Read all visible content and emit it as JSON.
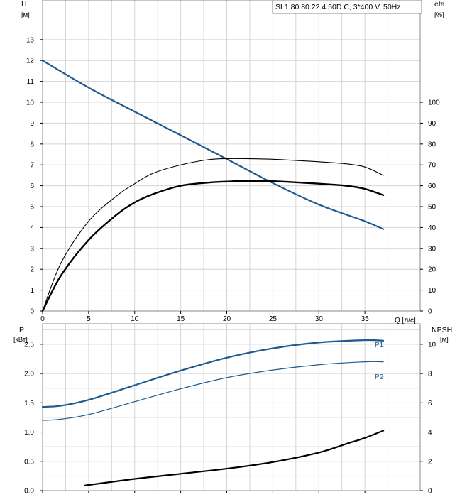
{
  "colors": {
    "blue": "#1f5a8f",
    "black": "#000000",
    "grid": "#d4d4d4"
  },
  "chart_data": [
    {
      "type": "line",
      "panel": "top",
      "title": "SL1.80.80.22.4.50D.C, 3*400 V, 50Hz",
      "xlabel": "Q [л/с]",
      "ylabel": "H",
      "yunit": "[м]",
      "y2label": "eta",
      "y2unit": "[%]",
      "xlim": [
        0,
        41
      ],
      "ylim": [
        0,
        14.9
      ],
      "y2lim": [
        0,
        149
      ],
      "xticks": [
        0,
        5,
        10,
        15,
        20,
        25,
        30,
        35
      ],
      "yticks": [
        0,
        1,
        2,
        3,
        4,
        5,
        6,
        7,
        8,
        9,
        10,
        11,
        12,
        13
      ],
      "y2ticks": [
        0,
        10,
        20,
        30,
        40,
        50,
        60,
        70,
        80,
        90,
        100
      ],
      "grid": true,
      "series": [
        {
          "axis": "left",
          "color": "#1f5a8f",
          "width": 2.2,
          "x": [
            0,
            5,
            10,
            15,
            20,
            25,
            30,
            35,
            37
          ],
          "y": [
            12.0,
            10.7,
            9.55,
            8.42,
            7.28,
            6.13,
            5.1,
            4.3,
            3.92
          ]
        },
        {
          "axis": "right",
          "color": "#000000",
          "width": 1.1,
          "x": [
            0,
            2,
            5,
            8,
            10,
            12,
            15,
            18,
            20,
            22,
            25,
            28,
            30,
            33,
            35,
            37
          ],
          "y": [
            0,
            23,
            43,
            55,
            61,
            66,
            70,
            72.5,
            73,
            73,
            72.7,
            72,
            71.5,
            70.5,
            69,
            65
          ]
        },
        {
          "axis": "right",
          "color": "#000000",
          "width": 2.4,
          "x": [
            0,
            2,
            5,
            8,
            10,
            12,
            15,
            18,
            20,
            22,
            25,
            28,
            30,
            33,
            35,
            37
          ],
          "y": [
            0,
            17,
            34,
            46,
            52,
            56,
            60,
            61.5,
            62,
            62.3,
            62.2,
            61.5,
            61,
            60,
            58.5,
            55.5
          ]
        }
      ]
    },
    {
      "type": "line",
      "panel": "bottom",
      "xlim": [
        0,
        41
      ],
      "ylim": [
        0,
        2.85
      ],
      "y2lim": [
        0,
        11.4
      ],
      "ylabel": "P",
      "yunit": "[кВт]",
      "y2label": "NPSH",
      "y2unit": "[м]",
      "yticks": [
        0.0,
        0.5,
        1.0,
        1.5,
        2.0,
        2.5
      ],
      "ytick_labels": [
        "0.0",
        "0.5",
        "1.0",
        "1.5",
        "2.0",
        "2.5"
      ],
      "y2ticks": [
        0,
        2,
        4,
        6,
        8,
        10
      ],
      "grid": true,
      "series": [
        {
          "name": "P1",
          "axis": "left",
          "color": "#1f5a8f",
          "width": 2.2,
          "x": [
            0,
            2,
            5,
            10,
            15,
            20,
            25,
            30,
            35,
            37
          ],
          "y": [
            1.43,
            1.45,
            1.55,
            1.8,
            2.05,
            2.27,
            2.43,
            2.53,
            2.57,
            2.56
          ]
        },
        {
          "name": "P2",
          "axis": "left",
          "color": "#1f5a8f",
          "width": 1.2,
          "x": [
            0,
            2,
            5,
            10,
            15,
            20,
            25,
            30,
            35,
            37
          ],
          "y": [
            1.2,
            1.22,
            1.3,
            1.52,
            1.74,
            1.93,
            2.06,
            2.15,
            2.2,
            2.2
          ]
        },
        {
          "axis": "right",
          "color": "#000000",
          "width": 2.2,
          "x": [
            4.6,
            10,
            15,
            20,
            25,
            30,
            33,
            35,
            37
          ],
          "y": [
            0.35,
            0.8,
            1.15,
            1.5,
            1.95,
            2.6,
            3.2,
            3.6,
            4.1
          ]
        }
      ]
    }
  ]
}
